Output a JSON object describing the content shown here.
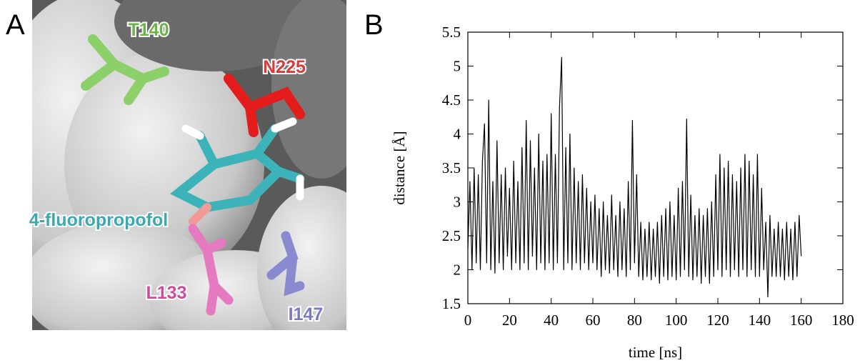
{
  "panel_a": {
    "panel_label": "A",
    "labels": [
      {
        "text": "T140",
        "color": "#6cb34a"
      },
      {
        "text": "N225",
        "color": "#d93a3a"
      },
      {
        "text": "4-fluoropropofol",
        "color": "#3aa9b0"
      },
      {
        "text": "L133",
        "color": "#cf4a9b"
      },
      {
        "text": "I147",
        "color": "#7a7ac2"
      }
    ]
  },
  "chart_data": {
    "type": "line",
    "panel_label": "B",
    "x_label": "time [ns]",
    "y_label": "distance [Å]",
    "color": "#000000",
    "x": [
      0,
      1,
      2,
      3,
      4,
      5,
      6,
      7,
      8,
      9,
      10,
      11,
      12,
      13,
      14,
      15,
      16,
      17,
      18,
      19,
      20,
      21,
      22,
      23,
      24,
      25,
      26,
      27,
      28,
      29,
      30,
      31,
      32,
      33,
      34,
      35,
      36,
      37,
      38,
      39,
      40,
      41,
      42,
      43,
      44,
      45,
      46,
      47,
      48,
      49,
      50,
      51,
      52,
      53,
      54,
      55,
      56,
      57,
      58,
      59,
      60,
      61,
      62,
      63,
      64,
      65,
      66,
      67,
      68,
      69,
      70,
      71,
      72,
      73,
      74,
      75,
      76,
      77,
      78,
      79,
      80,
      81,
      82,
      83,
      84,
      85,
      86,
      87,
      88,
      89,
      90,
      91,
      92,
      93,
      94,
      95,
      96,
      97,
      98,
      99,
      100,
      101,
      102,
      103,
      104,
      105,
      106,
      107,
      108,
      109,
      110,
      111,
      112,
      113,
      114,
      115,
      116,
      117,
      118,
      119,
      120,
      121,
      122,
      123,
      124,
      125,
      126,
      127,
      128,
      129,
      130,
      131,
      132,
      133,
      134,
      135,
      136,
      137,
      138,
      139,
      140,
      141,
      142,
      143,
      144,
      145,
      146,
      147,
      148,
      149,
      150,
      151,
      152,
      153,
      154,
      155,
      156,
      157,
      158,
      159,
      160
    ],
    "values": [
      2.3,
      3.3,
      2.0,
      3.5,
      2.1,
      3.4,
      2.0,
      3.6,
      4.15,
      2.1,
      4.5,
      2.0,
      3.3,
      1.95,
      3.9,
      2.1,
      3.4,
      2.0,
      3.5,
      2.2,
      3.2,
      2.0,
      3.6,
      2.1,
      3.3,
      2.0,
      3.8,
      2.1,
      4.2,
      2.0,
      3.9,
      2.2,
      3.5,
      2.0,
      4.0,
      2.1,
      3.6,
      2.0,
      3.7,
      2.1,
      4.3,
      2.0,
      3.7,
      2.1,
      4.4,
      5.13,
      2.0,
      3.8,
      2.1,
      4.0,
      2.0,
      3.5,
      2.1,
      3.3,
      2.0,
      3.4,
      2.1,
      3.2,
      2.0,
      3.0,
      2.1,
      3.1,
      2.0,
      2.9,
      1.9,
      3.0,
      2.0,
      2.8,
      1.95,
      3.1,
      2.0,
      2.8,
      1.9,
      3.0,
      2.0,
      2.9,
      1.9,
      3.3,
      2.0,
      4.2,
      2.1,
      3.4,
      1.9,
      2.7,
      1.85,
      2.6,
      1.9,
      2.7,
      1.85,
      2.6,
      1.9,
      2.7,
      1.8,
      2.8,
      1.9,
      2.9,
      1.85,
      3.0,
      1.9,
      2.8,
      1.85,
      3.2,
      1.9,
      3.3,
      2.0,
      4.22,
      1.9,
      3.1,
      1.85,
      2.8,
      1.9,
      2.9,
      1.8,
      2.8,
      1.9,
      2.9,
      1.8,
      3.0,
      1.9,
      3.4,
      2.0,
      3.7,
      1.9,
      3.5,
      2.0,
      3.6,
      1.9,
      3.4,
      2.0,
      3.3,
      1.9,
      3.5,
      2.0,
      3.7,
      1.9,
      3.6,
      2.0,
      3.4,
      1.9,
      3.7,
      1.9,
      3.2,
      2.0,
      2.7,
      1.6,
      2.8,
      1.9,
      2.6,
      1.9,
      2.7,
      1.9,
      2.6,
      1.85,
      2.7,
      1.9,
      2.6,
      1.85,
      2.7,
      1.9,
      2.8,
      2.2
    ],
    "xlim": [
      0,
      180
    ],
    "xticks": [
      0,
      20,
      40,
      60,
      80,
      100,
      120,
      140,
      160,
      180
    ],
    "ylim": [
      1.5,
      5.5
    ],
    "yticks": [
      1.5,
      2,
      2.5,
      3,
      3.5,
      4,
      4.5,
      5,
      5.5
    ]
  }
}
